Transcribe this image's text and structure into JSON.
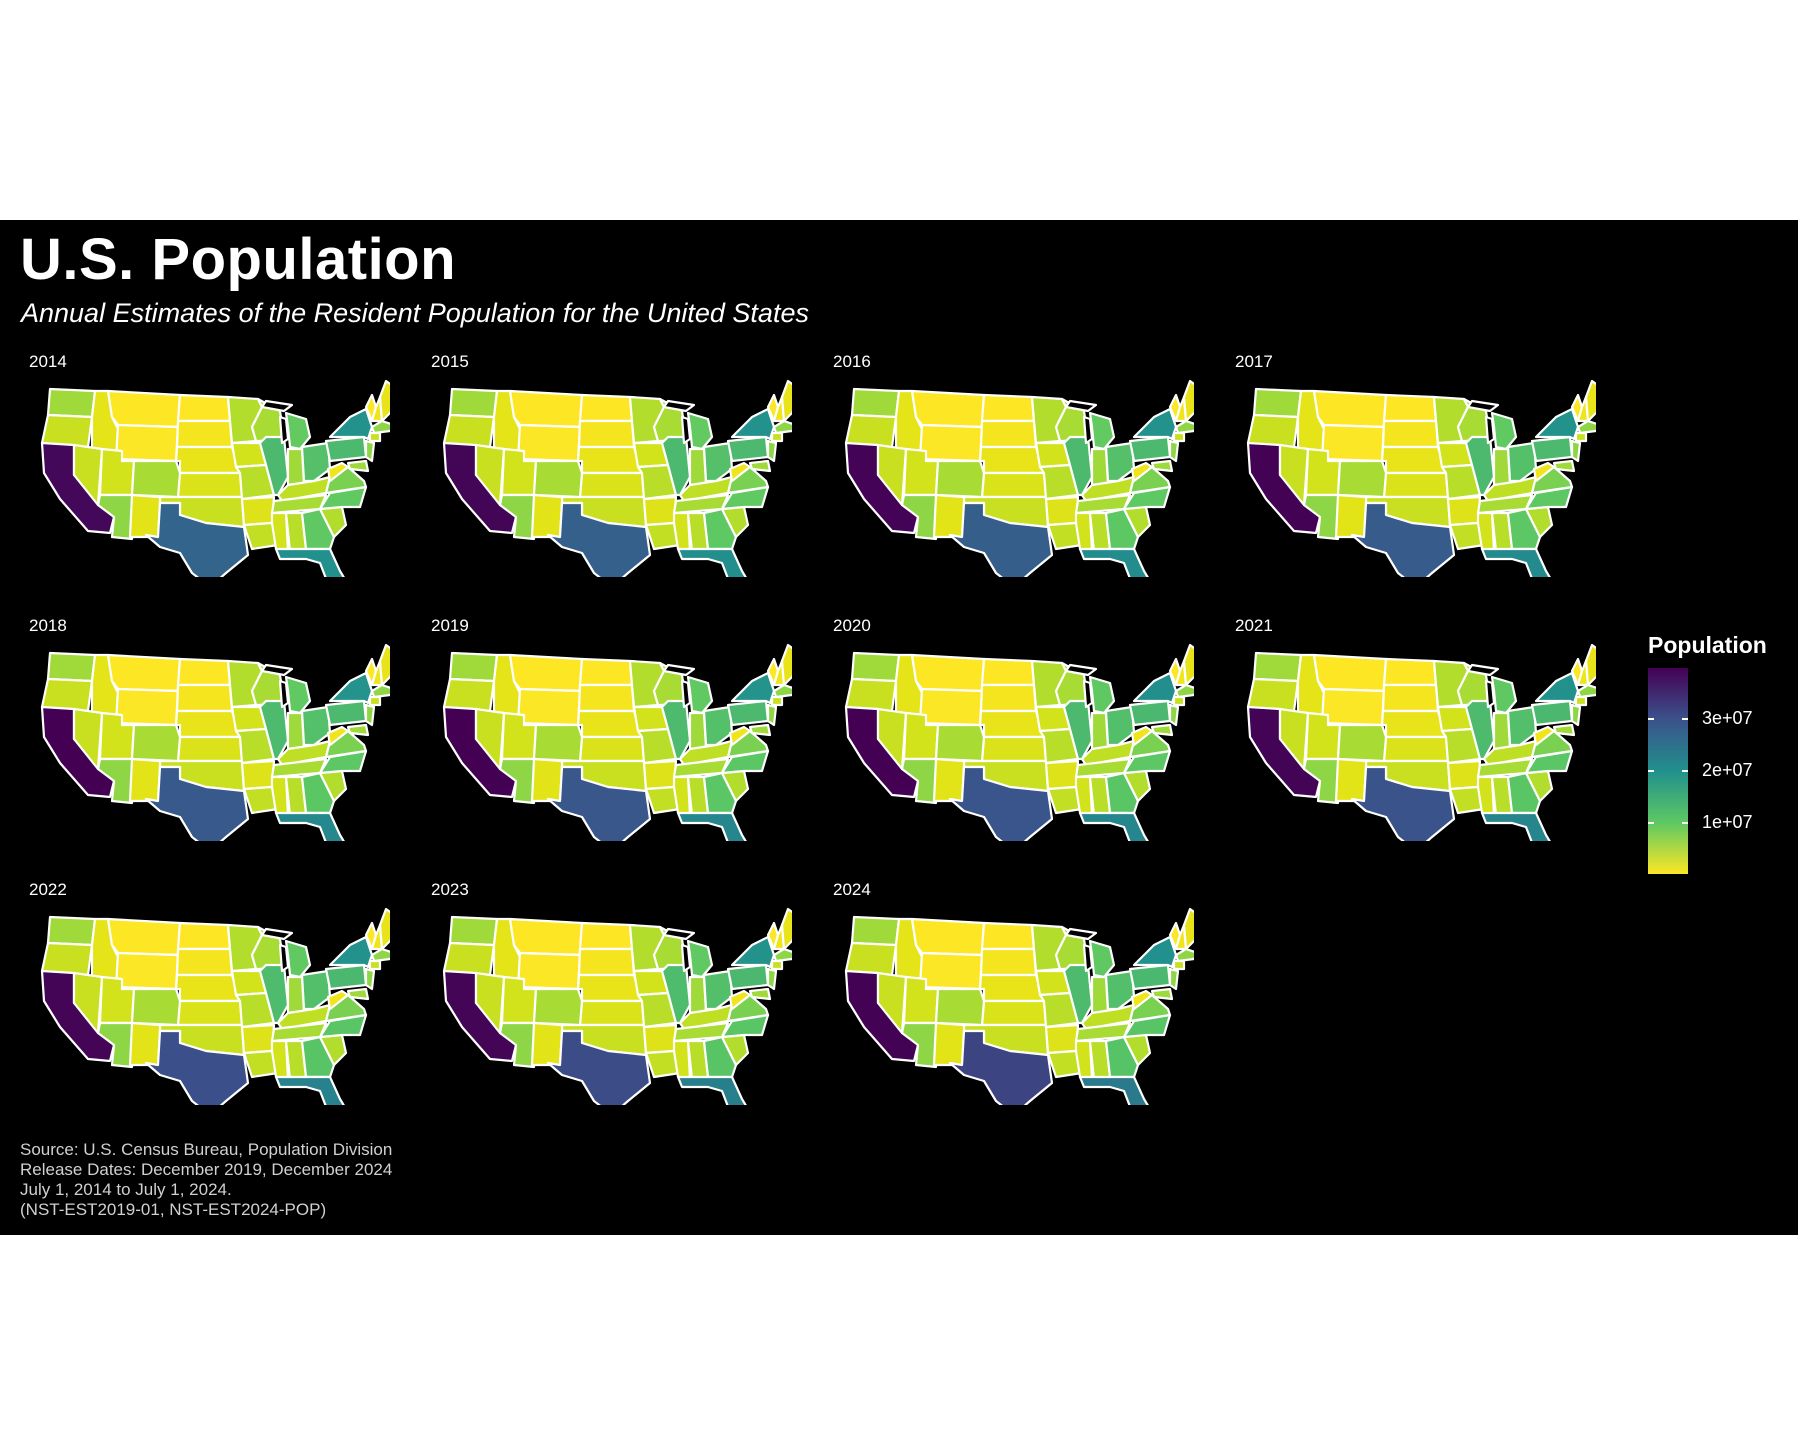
{
  "title": "U.S. Population",
  "subtitle": "Annual Estimates of the Resident Population for the United States",
  "caption_lines": [
    "Source: U.S. Census Bureau, Population Division",
    "Release Dates: December 2019, December 2024",
    "July 1, 2014 to July 1, 2024.",
    "(NST-EST2019-01, NST-EST2024-POP)"
  ],
  "legend": {
    "title": "Population",
    "ticks": [
      "3e+07",
      "2e+07",
      "1e+07"
    ],
    "tick_values": [
      30000000,
      20000000,
      10000000
    ],
    "min": 580000,
    "max": 39500000,
    "palette": [
      "#440154",
      "#3b528b",
      "#21908d",
      "#5dc863",
      "#fde725"
    ]
  },
  "panels": [
    "2014",
    "2015",
    "2016",
    "2017",
    "2018",
    "2019",
    "2020",
    "2021",
    "2022",
    "2023",
    "2024"
  ],
  "chart_data": {
    "type": "choropleth",
    "years": [
      2014,
      2015,
      2016,
      2017,
      2018,
      2019,
      2020,
      2021,
      2022,
      2023,
      2024
    ],
    "legend_title": "Population",
    "color_scale": "viridis (reversed)",
    "states": {
      "CA": [
        38.6,
        38.9,
        39.2,
        39.4,
        39.5,
        39.5,
        39.5,
        39.1,
        39.0,
        39.0,
        39.4
      ],
      "TX": [
        26.9,
        27.5,
        27.9,
        28.3,
        28.7,
        29.0,
        29.2,
        29.5,
        30.0,
        30.5,
        31.3
      ],
      "FL": [
        19.9,
        20.2,
        20.6,
        20.9,
        21.2,
        21.5,
        21.5,
        21.8,
        22.2,
        22.6,
        23.4
      ],
      "NY": [
        19.7,
        19.7,
        19.7,
        19.6,
        19.5,
        19.5,
        20.2,
        19.8,
        19.7,
        19.6,
        19.9
      ],
      "PA": [
        12.8,
        12.8,
        12.8,
        12.8,
        12.8,
        12.8,
        13.0,
        13.0,
        13.0,
        13.0,
        13.1
      ],
      "IL": [
        12.9,
        12.9,
        12.8,
        12.8,
        12.7,
        12.7,
        12.8,
        12.7,
        12.6,
        12.5,
        12.7
      ],
      "OH": [
        11.6,
        11.6,
        11.6,
        11.7,
        11.7,
        11.7,
        11.8,
        11.8,
        11.8,
        11.8,
        11.9
      ],
      "GA": [
        10.1,
        10.2,
        10.3,
        10.4,
        10.5,
        10.6,
        10.7,
        10.8,
        10.9,
        11.0,
        11.2
      ],
      "NC": [
        10.0,
        10.0,
        10.2,
        10.3,
        10.4,
        10.5,
        10.4,
        10.6,
        10.7,
        10.8,
        11.0
      ],
      "MI": [
        9.9,
        9.9,
        9.9,
        10.0,
        10.0,
        10.0,
        10.1,
        10.1,
        10.0,
        10.0,
        10.1
      ],
      "WY": [
        0.58,
        0.59,
        0.59,
        0.58,
        0.58,
        0.58,
        0.58,
        0.58,
        0.58,
        0.58,
        0.59
      ],
      "VT": [
        0.63,
        0.63,
        0.62,
        0.62,
        0.63,
        0.62,
        0.64,
        0.65,
        0.65,
        0.65,
        0.65
      ]
    },
    "value_unit": "millions"
  }
}
